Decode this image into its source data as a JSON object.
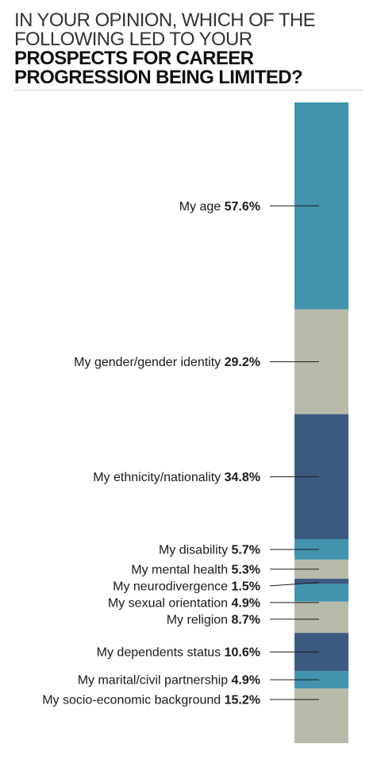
{
  "header": {
    "title_light_1": "IN YOUR OPINION, WHICH OF THE",
    "title_light_2": "FOLLOWING LED TO YOUR",
    "title_bold_1": "PROSPECTS FOR CAREER",
    "title_bold_2": "PROGRESSION BEING LIMITED?"
  },
  "chart_data": {
    "type": "bar",
    "stacked": true,
    "orientation": "vertical-single-column",
    "title": "IN YOUR OPINION, WHICH OF THE FOLLOWING LED TO YOUR PROSPECTS FOR CAREER PROGRESSION BEING LIMITED?",
    "categories": [
      "My age",
      "My gender/gender identity",
      "My ethnicity/nationality",
      "My disability",
      "My mental health",
      "My neurodivergence",
      "My sexual orientation",
      "My religion",
      "My dependents status",
      "My marital/civil partnership",
      "My socio-economic background"
    ],
    "values": [
      57.6,
      29.2,
      34.8,
      5.7,
      5.3,
      1.5,
      4.9,
      8.7,
      10.6,
      4.9,
      15.2
    ],
    "value_labels": [
      "57.6%",
      "29.2%",
      "34.8%",
      "5.7%",
      "5.3%",
      "1.5%",
      "4.9%",
      "8.7%",
      "10.6%",
      "4.9%",
      "15.2%"
    ],
    "colors": [
      "#4393ae",
      "#b9bbaa",
      "#3c5a80",
      "#4393ae",
      "#b9bbaa",
      "#3c5a80",
      "#4393ae",
      "#b9bbaa",
      "#3c5a80",
      "#4393ae",
      "#b9bbaa"
    ],
    "unit": "%"
  }
}
